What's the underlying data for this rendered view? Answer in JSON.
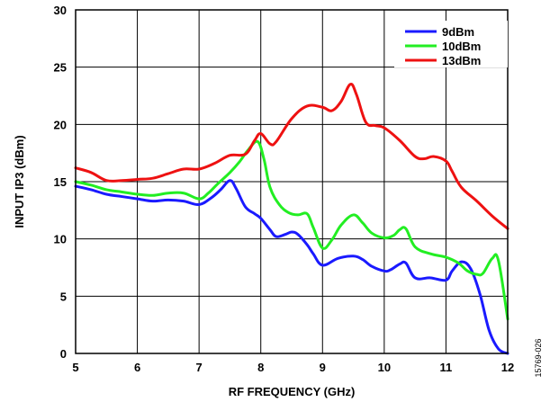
{
  "chart_data": {
    "type": "line",
    "title": "",
    "xlabel": "RF FREQUENCY (GHz)",
    "ylabel": "INPUT IP3 (dBm)",
    "xlim": [
      5,
      12
    ],
    "ylim": [
      0,
      30
    ],
    "xticks": [
      5,
      6,
      7,
      8,
      9,
      10,
      11,
      12
    ],
    "yticks": [
      0,
      5,
      10,
      15,
      20,
      25,
      30
    ],
    "grid": true,
    "legend_position": "top-right",
    "figure_id": "15769-026",
    "series": [
      {
        "name": "9dBm",
        "color": "#1a1aff",
        "x": [
          5.0,
          5.25,
          5.5,
          5.75,
          6.0,
          6.25,
          6.5,
          6.75,
          7.0,
          7.2,
          7.35,
          7.5,
          7.6,
          7.75,
          7.9,
          8.0,
          8.15,
          8.25,
          8.4,
          8.5,
          8.6,
          8.75,
          8.85,
          9.0,
          9.25,
          9.5,
          9.65,
          9.8,
          10.0,
          10.1,
          10.25,
          10.35,
          10.5,
          10.75,
          11.0,
          11.1,
          11.25,
          11.4,
          11.55,
          11.7,
          11.85,
          12.0
        ],
        "y": [
          14.6,
          14.3,
          13.9,
          13.7,
          13.5,
          13.3,
          13.4,
          13.3,
          13.0,
          13.6,
          14.3,
          15.1,
          14.4,
          12.8,
          12.2,
          11.8,
          10.8,
          10.2,
          10.4,
          10.6,
          10.4,
          9.5,
          8.7,
          7.7,
          8.3,
          8.5,
          8.2,
          7.6,
          7.2,
          7.3,
          7.8,
          7.9,
          6.6,
          6.6,
          6.4,
          7.2,
          8.0,
          7.4,
          5.2,
          2.0,
          0.4,
          0.0
        ]
      },
      {
        "name": "10dBm",
        "color": "#22ee22",
        "x": [
          5.0,
          5.25,
          5.5,
          5.75,
          6.0,
          6.25,
          6.5,
          6.75,
          7.0,
          7.15,
          7.3,
          7.5,
          7.65,
          7.8,
          7.95,
          8.05,
          8.15,
          8.3,
          8.45,
          8.6,
          8.75,
          8.85,
          9.0,
          9.15,
          9.3,
          9.5,
          9.65,
          9.8,
          10.0,
          10.15,
          10.25,
          10.35,
          10.5,
          10.75,
          11.0,
          11.2,
          11.35,
          11.5,
          11.6,
          11.75,
          11.85,
          12.0
        ],
        "y": [
          15.0,
          14.7,
          14.3,
          14.1,
          13.9,
          13.8,
          14.0,
          14.0,
          13.5,
          14.0,
          14.8,
          15.8,
          16.7,
          17.8,
          18.5,
          17.0,
          14.5,
          13.0,
          12.3,
          12.1,
          12.2,
          11.0,
          9.2,
          9.9,
          11.2,
          12.1,
          11.4,
          10.5,
          10.1,
          10.3,
          10.8,
          10.9,
          9.3,
          8.7,
          8.4,
          7.9,
          7.2,
          6.9,
          7.0,
          8.3,
          8.1,
          3.0
        ]
      },
      {
        "name": "13dBm",
        "color": "#ee1111",
        "x": [
          5.0,
          5.25,
          5.5,
          5.75,
          6.0,
          6.25,
          6.5,
          6.75,
          7.0,
          7.25,
          7.5,
          7.75,
          7.9,
          8.0,
          8.15,
          8.25,
          8.5,
          8.75,
          9.0,
          9.15,
          9.3,
          9.45,
          9.55,
          9.7,
          9.85,
          10.0,
          10.25,
          10.5,
          10.65,
          10.8,
          11.0,
          11.1,
          11.25,
          11.5,
          11.75,
          12.0
        ],
        "y": [
          16.2,
          15.8,
          15.1,
          15.1,
          15.2,
          15.3,
          15.7,
          16.1,
          16.1,
          16.6,
          17.3,
          17.4,
          18.6,
          19.2,
          18.3,
          18.5,
          20.5,
          21.6,
          21.5,
          21.2,
          22.0,
          23.5,
          22.6,
          20.2,
          19.9,
          19.7,
          18.6,
          17.2,
          17.0,
          17.2,
          16.8,
          15.9,
          14.5,
          13.3,
          12.0,
          10.9
        ]
      }
    ]
  }
}
